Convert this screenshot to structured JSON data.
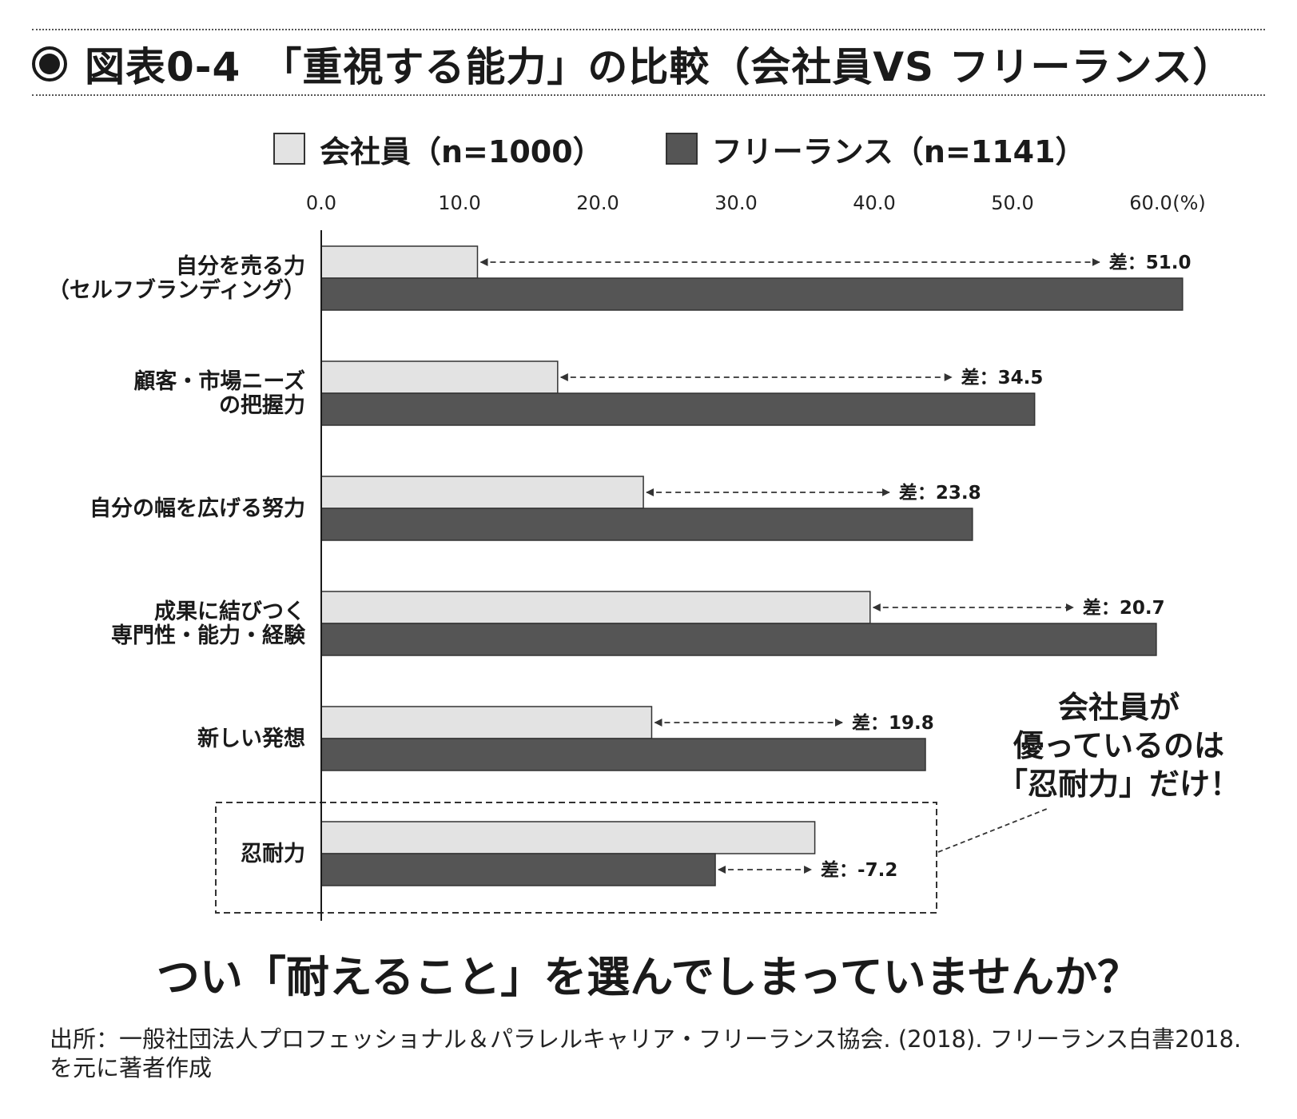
{
  "header": {
    "title": "図表0-4　「重視する能力」の比較（会社員VS フリーランス）",
    "bullet_icon": "filled-circle-bullet-icon"
  },
  "legend": {
    "employee": "会社員（n=1000）",
    "freelance": "フリーランス（n=1141）"
  },
  "chart_data": {
    "type": "bar",
    "orientation": "horizontal",
    "xlim": [
      0,
      60
    ],
    "ticks": [
      "0.0",
      "10.0",
      "20.0",
      "30.0",
      "40.0",
      "50.0",
      "60.0"
    ],
    "unit": "(%)",
    "categories": [
      [
        "自分を売る力",
        "（セルフブランディング）"
      ],
      [
        "顧客・市場ニーズ",
        "の把握力"
      ],
      [
        "自分の幅を広げる努力"
      ],
      [
        "成果に結びつく",
        "専門性・能力・経験"
      ],
      [
        "新しい発想"
      ],
      [
        "忍耐力"
      ]
    ],
    "series": [
      {
        "name": "会社員（n=1000）",
        "color": "#e3e3e3",
        "values": [
          11.3,
          17.1,
          23.3,
          39.7,
          23.9,
          35.7
        ]
      },
      {
        "name": "フリーランス（n=1141）",
        "color": "#555555",
        "values": [
          62.3,
          51.6,
          47.1,
          60.4,
          43.7,
          28.5
        ]
      }
    ],
    "differences": [
      "差：51.0",
      "差：34.5",
      "差：23.8",
      "差：20.7",
      "差：19.8",
      "差：-7.2"
    ],
    "highlight_category_index": 5,
    "callout": [
      "会社員が",
      "優っているのは",
      "「忍耐力」だけ！"
    ],
    "grid": false,
    "legend_position": "top"
  },
  "tagline": "つい「耐えること」を選んでしまっていませんか？",
  "source": "出所：一般社団法人プロフェッショナル＆パラレルキャリア・フリーランス協会. (2018). フリーランス白書2018. を元に著者作成"
}
